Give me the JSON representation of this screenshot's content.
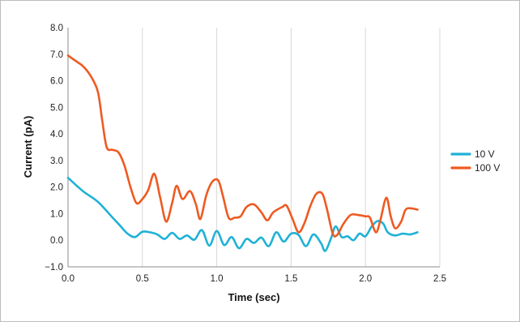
{
  "chart_data": {
    "type": "line",
    "xlabel": "Time (sec)",
    "ylabel": "Current (pA)",
    "xlim": [
      0,
      2.5
    ],
    "ylim": [
      -1,
      8
    ],
    "x_ticks": [
      "0.0",
      "0.5",
      "1.0",
      "1.5",
      "2.0",
      "2.5"
    ],
    "y_ticks": [
      "−1.0",
      "0.0",
      "1.0",
      "2.0",
      "3.0",
      "4.0",
      "5.0",
      "6.0",
      "7.0",
      "8.0"
    ],
    "grid": "vertical",
    "legend_position": "right",
    "series": [
      {
        "name": "10 V",
        "color": "#1fb1d6",
        "points": [
          [
            0.0,
            2.35
          ],
          [
            0.1,
            1.85
          ],
          [
            0.2,
            1.45
          ],
          [
            0.3,
            0.85
          ],
          [
            0.35,
            0.55
          ],
          [
            0.4,
            0.25
          ],
          [
            0.45,
            0.12
          ],
          [
            0.5,
            0.32
          ],
          [
            0.55,
            0.3
          ],
          [
            0.6,
            0.22
          ],
          [
            0.65,
            0.05
          ],
          [
            0.7,
            0.28
          ],
          [
            0.75,
            0.05
          ],
          [
            0.8,
            0.18
          ],
          [
            0.85,
            0.02
          ],
          [
            0.9,
            0.38
          ],
          [
            0.95,
            -0.2
          ],
          [
            1.0,
            0.35
          ],
          [
            1.05,
            -0.18
          ],
          [
            1.1,
            0.12
          ],
          [
            1.15,
            -0.3
          ],
          [
            1.2,
            0.05
          ],
          [
            1.25,
            -0.1
          ],
          [
            1.3,
            0.1
          ],
          [
            1.35,
            -0.22
          ],
          [
            1.4,
            0.3
          ],
          [
            1.45,
            -0.05
          ],
          [
            1.5,
            0.25
          ],
          [
            1.55,
            0.2
          ],
          [
            1.6,
            -0.22
          ],
          [
            1.65,
            0.22
          ],
          [
            1.7,
            -0.1
          ],
          [
            1.73,
            -0.4
          ],
          [
            1.77,
            0.1
          ],
          [
            1.8,
            0.52
          ],
          [
            1.84,
            0.12
          ],
          [
            1.88,
            0.15
          ],
          [
            1.92,
            0.0
          ],
          [
            1.96,
            0.25
          ],
          [
            2.0,
            0.15
          ],
          [
            2.04,
            0.5
          ],
          [
            2.08,
            0.72
          ],
          [
            2.12,
            0.62
          ],
          [
            2.15,
            0.3
          ],
          [
            2.2,
            0.18
          ],
          [
            2.25,
            0.25
          ],
          [
            2.3,
            0.22
          ],
          [
            2.35,
            0.3
          ]
        ]
      },
      {
        "name": "100 V",
        "color": "#ee5a21",
        "points": [
          [
            0.0,
            6.95
          ],
          [
            0.05,
            6.75
          ],
          [
            0.1,
            6.55
          ],
          [
            0.15,
            6.2
          ],
          [
            0.2,
            5.6
          ],
          [
            0.23,
            4.5
          ],
          [
            0.26,
            3.5
          ],
          [
            0.3,
            3.4
          ],
          [
            0.34,
            3.3
          ],
          [
            0.38,
            2.8
          ],
          [
            0.42,
            2.0
          ],
          [
            0.46,
            1.4
          ],
          [
            0.5,
            1.55
          ],
          [
            0.54,
            1.9
          ],
          [
            0.58,
            2.5
          ],
          [
            0.62,
            1.6
          ],
          [
            0.66,
            0.7
          ],
          [
            0.7,
            1.4
          ],
          [
            0.73,
            2.05
          ],
          [
            0.77,
            1.55
          ],
          [
            0.82,
            1.85
          ],
          [
            0.86,
            1.35
          ],
          [
            0.89,
            0.8
          ],
          [
            0.93,
            1.7
          ],
          [
            0.97,
            2.2
          ],
          [
            1.01,
            2.25
          ],
          [
            1.04,
            1.7
          ],
          [
            1.08,
            0.85
          ],
          [
            1.12,
            0.85
          ],
          [
            1.16,
            0.9
          ],
          [
            1.2,
            1.25
          ],
          [
            1.25,
            1.35
          ],
          [
            1.3,
            1.05
          ],
          [
            1.34,
            0.75
          ],
          [
            1.38,
            1.05
          ],
          [
            1.44,
            1.25
          ],
          [
            1.47,
            1.3
          ],
          [
            1.51,
            0.8
          ],
          [
            1.55,
            0.3
          ],
          [
            1.59,
            0.65
          ],
          [
            1.63,
            1.3
          ],
          [
            1.67,
            1.75
          ],
          [
            1.71,
            1.75
          ],
          [
            1.74,
            1.2
          ],
          [
            1.78,
            0.25
          ],
          [
            1.81,
            0.2
          ],
          [
            1.85,
            0.6
          ],
          [
            1.9,
            0.95
          ],
          [
            1.95,
            0.95
          ],
          [
            2.0,
            0.9
          ],
          [
            2.03,
            0.85
          ],
          [
            2.07,
            0.3
          ],
          [
            2.1,
            0.75
          ],
          [
            2.14,
            1.6
          ],
          [
            2.17,
            0.9
          ],
          [
            2.2,
            0.45
          ],
          [
            2.24,
            0.7
          ],
          [
            2.27,
            1.15
          ],
          [
            2.31,
            1.2
          ],
          [
            2.35,
            1.15
          ]
        ]
      }
    ]
  }
}
